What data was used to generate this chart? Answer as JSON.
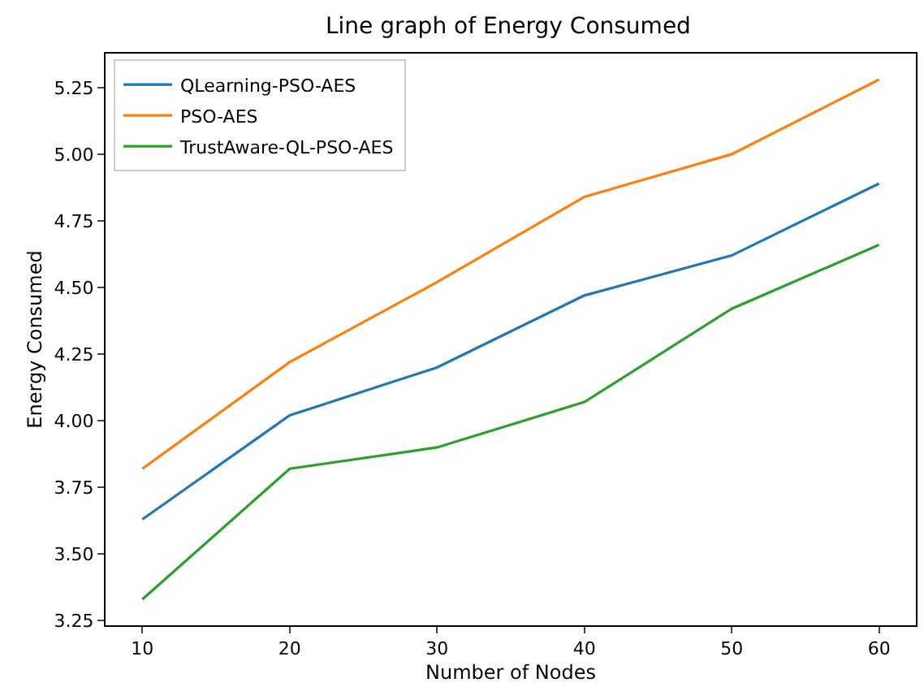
{
  "chart_data": {
    "type": "line",
    "title": "Line graph of Energy Consumed",
    "xlabel": "Number of Nodes",
    "ylabel": "Energy Consumed",
    "x": [
      10,
      20,
      30,
      40,
      50,
      60
    ],
    "series": [
      {
        "name": "QLearning-PSO-AES",
        "color": "#1f77b4",
        "values": [
          3.63,
          4.02,
          4.2,
          4.47,
          4.62,
          4.89
        ]
      },
      {
        "name": "PSO-AES",
        "color": "#ff7f0e",
        "values": [
          3.82,
          4.22,
          4.52,
          4.84,
          5.0,
          5.28
        ]
      },
      {
        "name": "TrustAware-QL-PSO-AES",
        "color": "#2ca02c",
        "values": [
          3.33,
          3.82,
          3.9,
          4.07,
          4.42,
          4.66
        ]
      }
    ],
    "xlim": [
      7.5,
      62.5
    ],
    "xticks": [
      10,
      20,
      30,
      40,
      50,
      60
    ],
    "ylim": [
      3.2325,
      5.3775
    ],
    "yticks": [
      {
        "value": 3.25,
        "label": "3.25"
      },
      {
        "value": 3.5,
        "label": "3.50"
      },
      {
        "value": 3.75,
        "label": "3.75"
      },
      {
        "value": 4.0,
        "label": "4.00"
      },
      {
        "value": 4.25,
        "label": "4.25"
      },
      {
        "value": 4.5,
        "label": "4.50"
      },
      {
        "value": 4.75,
        "label": "4.75"
      },
      {
        "value": 5.0,
        "label": "5.00"
      },
      {
        "value": 5.25,
        "label": "5.25"
      }
    ],
    "legend": "top left",
    "marker": "none",
    "line_style": "solid"
  }
}
